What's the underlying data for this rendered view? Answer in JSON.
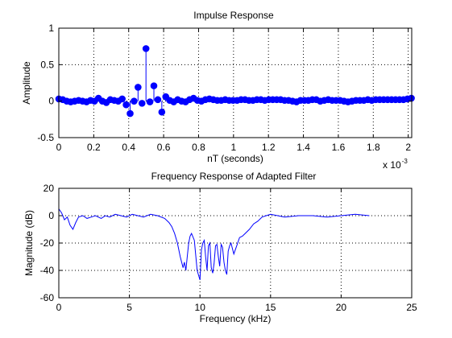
{
  "figure": {
    "background": "#ffffff"
  },
  "chart_data": [
    {
      "type": "stem",
      "title": "Impulse Response",
      "xlabel": "nT (seconds)",
      "ylabel": "Amplitude",
      "x_multiplier": {
        "base": "x 10",
        "exponent": "-3"
      },
      "xlim": [
        0,
        2.02
      ],
      "ylim": [
        -0.5,
        1
      ],
      "xticks": [
        0,
        0.2,
        0.4,
        0.6,
        0.8,
        1,
        1.2,
        1.4,
        1.6,
        1.8,
        2
      ],
      "xtick_labels": [
        "0",
        "0.2",
        "0.4",
        "0.6",
        "0.8",
        "1",
        "1.2",
        "1.4",
        "1.6",
        "1.8",
        "2"
      ],
      "yticks": [
        -0.5,
        0,
        0.5,
        1
      ],
      "ytick_labels": [
        "-0.5",
        "0",
        "0.5",
        "1"
      ],
      "grid": true,
      "color": "#0000ff",
      "series": [
        {
          "x": [
            0.0,
            0.0227,
            0.0454,
            0.0681,
            0.0907,
            0.1134,
            0.1361,
            0.1588,
            0.1814,
            0.2041,
            0.2268,
            0.2494,
            0.2721,
            0.2948,
            0.3175,
            0.3401,
            0.3628,
            0.3855,
            0.4082,
            0.4308,
            0.4535,
            0.4762,
            0.4989,
            0.5215,
            0.5442,
            0.5669,
            0.5896,
            0.6122,
            0.6349,
            0.6576,
            0.6803,
            0.7029,
            0.7256,
            0.7483,
            0.771,
            0.7936,
            0.8163,
            0.839,
            0.8617,
            0.8843,
            0.907,
            0.9297,
            0.9524,
            0.975,
            0.9977,
            1.0204,
            1.0431,
            1.0658,
            1.0884,
            1.1111,
            1.1338,
            1.1565,
            1.1791,
            1.2018,
            1.2245,
            1.2472,
            1.2698,
            1.2925,
            1.3152,
            1.3379,
            1.3605,
            1.3832,
            1.4059,
            1.4286,
            1.4512,
            1.4739,
            1.4966,
            1.5193,
            1.542,
            1.5646,
            1.5873,
            1.61,
            1.6327,
            1.6553,
            1.678,
            1.7007,
            1.7234,
            1.746,
            1.7687,
            1.7914,
            1.8141,
            1.8367,
            1.8594,
            1.8821,
            1.9048,
            1.9274,
            1.9501,
            1.9728,
            1.9955,
            2.0181
          ],
          "y": [
            0.03,
            0.02,
            0.0,
            -0.01,
            0.0,
            0.01,
            0.0,
            -0.01,
            0.01,
            0.0,
            0.04,
            0.0,
            -0.02,
            0.02,
            0.01,
            0.0,
            0.03,
            -0.05,
            -0.17,
            0.0,
            0.19,
            -0.03,
            0.72,
            -0.01,
            0.21,
            0.02,
            -0.15,
            0.06,
            0.01,
            -0.01,
            0.02,
            0.0,
            -0.01,
            0.02,
            0.04,
            0.01,
            0.0,
            0.02,
            0.03,
            0.02,
            0.01,
            0.01,
            0.02,
            0.01,
            0.01,
            0.01,
            0.02,
            0.02,
            0.01,
            0.01,
            0.02,
            0.02,
            0.01,
            0.02,
            0.02,
            0.02,
            0.02,
            0.01,
            0.01,
            0.0,
            -0.01,
            0.01,
            0.01,
            0.01,
            0.02,
            0.02,
            0.0,
            0.01,
            0.02,
            0.01,
            0.01,
            0.01,
            0.0,
            -0.01,
            0.0,
            0.01,
            0.01,
            0.01,
            0.02,
            0.01,
            0.02,
            0.02,
            0.02,
            0.02,
            0.02,
            0.02,
            0.02,
            0.02,
            0.03,
            0.04
          ]
        }
      ]
    },
    {
      "type": "line",
      "title": "Frequency Response of Adapted Filter",
      "xlabel": "Frequency (kHz)",
      "ylabel": "Magnitude (dB)",
      "xlim": [
        0,
        25
      ],
      "ylim": [
        -60,
        20
      ],
      "xticks": [
        0,
        5,
        10,
        15,
        20,
        25
      ],
      "xtick_labels": [
        "0",
        "5",
        "10",
        "15",
        "20",
        "25"
      ],
      "yticks": [
        -60,
        -40,
        -20,
        0,
        20
      ],
      "ytick_labels": [
        "-60",
        "-40",
        "-20",
        "0",
        "20"
      ],
      "grid": true,
      "color": "#0000ff",
      "series": [
        {
          "x": [
            0,
            0.2,
            0.4,
            0.6,
            0.8,
            1.0,
            1.2,
            1.4,
            1.7,
            2.0,
            2.3,
            2.6,
            3.0,
            3.3,
            3.6,
            4.0,
            4.4,
            4.8,
            5.2,
            5.6,
            6.0,
            6.5,
            7.0,
            7.5,
            7.8,
            8.0,
            8.2,
            8.4,
            8.6,
            8.8,
            8.9,
            9.0,
            9.1,
            9.2,
            9.3,
            9.4,
            9.6,
            9.8,
            10.0,
            10.1,
            10.2,
            10.3,
            10.4,
            10.5,
            10.6,
            10.7,
            10.8,
            10.9,
            11.0,
            11.1,
            11.2,
            11.3,
            11.4,
            11.5,
            11.6,
            11.7,
            11.8,
            11.9,
            12.0,
            12.1,
            12.2,
            12.4,
            12.6,
            12.8,
            13.0,
            13.2,
            13.5,
            13.8,
            14.1,
            14.4,
            14.7,
            15.0,
            15.5,
            16.0,
            17.0,
            18.0,
            19.0,
            20.0,
            21.0,
            22.0
          ],
          "y": [
            5,
            2,
            -3,
            -1,
            -7,
            -10,
            -5,
            -1,
            0,
            -2,
            -1,
            0,
            -2,
            0,
            -1,
            1,
            0,
            -1,
            1,
            0,
            -1,
            1,
            0,
            -2,
            -5,
            -8,
            -13,
            -20,
            -30,
            -38,
            -34,
            -40,
            -30,
            -20,
            -15,
            -13,
            -18,
            -40,
            -47,
            -25,
            -20,
            -18,
            -30,
            -40,
            -22,
            -20,
            -38,
            -42,
            -35,
            -22,
            -21,
            -30,
            -37,
            -21,
            -23,
            -34,
            -40,
            -43,
            -26,
            -22,
            -20,
            -28,
            -22,
            -16,
            -15,
            -13,
            -10,
            -6,
            -4,
            -1,
            0,
            1,
            0,
            -1,
            0,
            0,
            -1,
            0,
            1,
            0
          ]
        }
      ]
    }
  ]
}
